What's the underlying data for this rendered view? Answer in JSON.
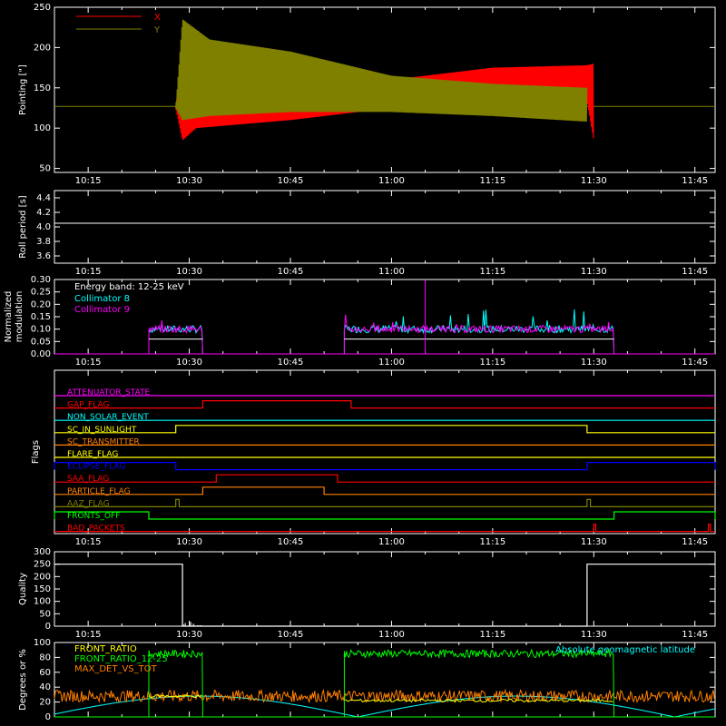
{
  "time_labels": [
    "10:15",
    "10:30",
    "10:45",
    "11:00",
    "11:15",
    "11:30",
    "11:45"
  ],
  "colors": {
    "x": "#ff0000",
    "y": "#808000",
    "white": "#ffffff",
    "cyan": "#00ffff",
    "magenta": "#ff00ff",
    "green": "#00ff00",
    "orange": "#ff8000",
    "yellow": "#ffff00",
    "blue": "#0000ff",
    "olive": "#808000"
  },
  "chart_data": [
    {
      "id": "pointing",
      "type": "line",
      "ylabel": "Pointing [\"]",
      "ylim": [
        45,
        250
      ],
      "yticks": [
        50,
        100,
        150,
        200,
        250
      ],
      "xlim_minutes_from_1010": [
        0,
        98
      ],
      "legend": [
        {
          "name": "X",
          "color": "#ff0000"
        },
        {
          "name": "Y",
          "color": "#808000"
        }
      ],
      "series": [
        {
          "name": "X",
          "color": "#ff0000",
          "envelope": [
            [
              "10:28",
              125,
              125
            ],
            [
              "10:29",
              85,
              205
            ],
            [
              "10:31",
              100,
              160
            ],
            [
              "10:45",
              110,
              135
            ],
            [
              "11:00",
              125,
              160
            ],
            [
              "11:15",
              130,
              175
            ],
            [
              "11:29",
              135,
              178
            ],
            [
              "11:30",
              85,
              180
            ]
          ]
        },
        {
          "name": "Y",
          "color": "#808000",
          "envelope": [
            [
              "10:28",
              125,
              125
            ],
            [
              "10:29",
              110,
              235
            ],
            [
              "10:33",
              115,
              210
            ],
            [
              "10:45",
              120,
              195
            ],
            [
              "11:00",
              120,
              165
            ],
            [
              "11:15",
              115,
              155
            ],
            [
              "11:29",
              108,
              150
            ]
          ]
        }
      ],
      "baseline": 127
    },
    {
      "id": "roll",
      "type": "line",
      "ylabel": "Roll period [s]",
      "ylim": [
        3.5,
        4.5
      ],
      "yticks": [
        3.6,
        3.8,
        4.0,
        4.2,
        4.4
      ],
      "series": [
        {
          "name": "roll",
          "color": "#ffffff",
          "value": 4.05
        }
      ]
    },
    {
      "id": "modulation",
      "type": "line",
      "ylabel": "Normalized modulation",
      "ylim": [
        0,
        0.3
      ],
      "yticks": [
        0.0,
        0.05,
        0.1,
        0.15,
        0.2,
        0.25,
        0.3
      ],
      "annotations": [
        "Energy band: 12-25 keV"
      ],
      "legend": [
        {
          "name": "Collimator 8",
          "color": "#00ffff"
        },
        {
          "name": "Collimator 9",
          "color": "#ff00ff"
        }
      ],
      "series": [
        {
          "name": "Collimator 8",
          "color": "#00ffff",
          "segments": [
            [
              "10:24",
              "10:32",
              0.1
            ],
            [
              "10:53",
              "11:33",
              0.1
            ]
          ]
        },
        {
          "name": "Collimator 9",
          "color": "#ff00ff",
          "segments": [
            [
              "10:24",
              "10:32",
              0.1
            ],
            [
              "10:53",
              "11:33",
              0.1
            ]
          ]
        }
      ]
    },
    {
      "id": "flags",
      "type": "line",
      "ylabel": "Flags",
      "flags": [
        {
          "name": "ATTENUATOR_STATE",
          "color": "#ff00ff",
          "high": []
        },
        {
          "name": "GAP_FLAG",
          "color": "#ff0000",
          "high": [
            [
              "10:32",
              "10:54"
            ]
          ]
        },
        {
          "name": "NON_SOLAR_EVENT",
          "color": "#00ffff",
          "high": []
        },
        {
          "name": "SC_IN_SUNLIGHT",
          "color": "#ffff00",
          "high": [
            [
              "10:28",
              "11:29"
            ]
          ]
        },
        {
          "name": "SC_TRANSMITTER",
          "color": "#ff8000",
          "high": []
        },
        {
          "name": "FLARE_FLAG",
          "color": "#ffff00",
          "high": []
        },
        {
          "name": "ECLIPSE_FLAG",
          "color": "#0000ff",
          "high": [
            [
              "10:10",
              "10:28"
            ],
            [
              "11:29",
              "11:48"
            ]
          ]
        },
        {
          "name": "SAA_FLAG",
          "color": "#ff0000",
          "high": [
            [
              "10:34",
              "10:52"
            ]
          ]
        },
        {
          "name": "PARTICLE_FLAG",
          "color": "#ff8000",
          "high": [
            [
              "10:32",
              "10:50"
            ]
          ]
        },
        {
          "name": "AAZ_FLAG",
          "color": "#808000",
          "high": [
            [
              "10:28",
              "10:28.5"
            ],
            [
              "11:29",
              "11:29.5"
            ]
          ]
        },
        {
          "name": "FRONTS_OFF",
          "color": "#00ff00",
          "high": [
            [
              "10:10",
              "10:24"
            ],
            [
              "11:33",
              "11:48"
            ]
          ]
        },
        {
          "name": "BAD_PACKETS",
          "color": "#ff0000",
          "high": [
            [
              "11:30",
              "11:30.3"
            ],
            [
              "11:47",
              "11:47.3"
            ]
          ]
        }
      ]
    },
    {
      "id": "quality",
      "type": "line",
      "ylabel": "Quality",
      "ylim": [
        0,
        300
      ],
      "yticks": [
        0,
        50,
        100,
        150,
        200,
        250,
        300
      ],
      "series": [
        {
          "name": "quality",
          "color": "#ffffff",
          "segments": [
            [
              "10:10",
              "10:29",
              250
            ],
            [
              "10:29",
              "11:29",
              0
            ],
            [
              "11:29",
              "11:48",
              250
            ]
          ]
        }
      ]
    },
    {
      "id": "geo",
      "type": "line",
      "ylabel": "Degrees or %",
      "ylim": [
        0,
        100
      ],
      "yticks": [
        0,
        20,
        40,
        60,
        80,
        100
      ],
      "legend": [
        {
          "name": "FRONT_RATIO",
          "color": "#ffff00"
        },
        {
          "name": "FRONT_RATIO_12-25",
          "color": "#00ff00"
        },
        {
          "name": "MAX_DET_VS_TOT",
          "color": "#ff8000"
        }
      ],
      "annotations": [
        "Absolute geomagnetic latitude"
      ],
      "series": [
        {
          "name": "FRONT_RATIO_12-25",
          "color": "#00ff00",
          "segments": [
            [
              "10:24",
              "10:32",
              85
            ],
            [
              "10:53",
              "11:33",
              85
            ]
          ]
        },
        {
          "name": "FRONT_RATIO",
          "color": "#ffff00",
          "segments": [
            [
              "10:24",
              "10:32",
              28
            ],
            [
              "10:53",
              "11:33",
              22
            ]
          ]
        },
        {
          "name": "MAX_DET_VS_TOT",
          "color": "#ff8000",
          "value": 28
        },
        {
          "name": "Absolute geomagnetic latitude",
          "color": "#00ffff",
          "shape": "sine"
        }
      ]
    }
  ]
}
